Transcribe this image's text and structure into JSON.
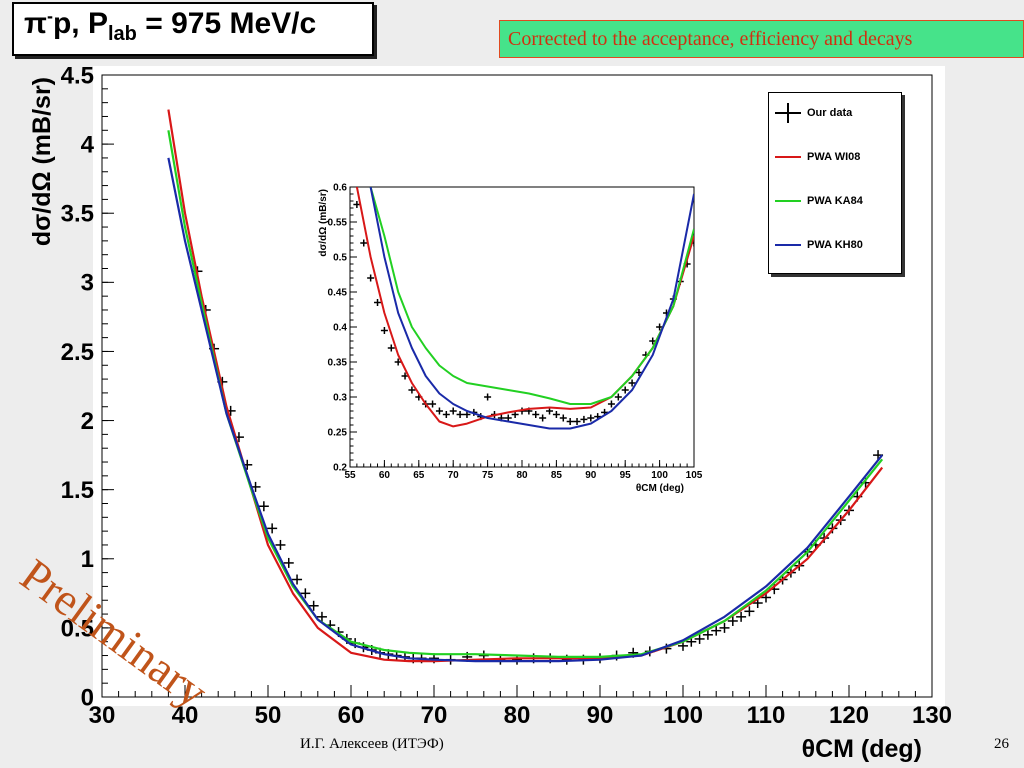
{
  "header": {
    "title_pre": "π",
    "title_sup": "-",
    "title_mid": "p, P",
    "title_sub": "lab",
    "title_post": " = 975 MeV/c",
    "note": "Corrected to the acceptance, efficiency and decays"
  },
  "footer": {
    "author": "И.Г. Алексеев (ИТЭФ)",
    "page": "26"
  },
  "watermark": "Preliminary",
  "colors": {
    "data": "#000000",
    "WI08": "#d81818",
    "KA84": "#22d022",
    "KH80": "#1a2aa8"
  },
  "legend": [
    {
      "label": "Our data",
      "key": "data"
    },
    {
      "label": "PWA WI08",
      "key": "WI08"
    },
    {
      "label": "PWA KA84",
      "key": "KA84"
    },
    {
      "label": "PWA KH80",
      "key": "KH80"
    }
  ],
  "chart_data": [
    {
      "type": "line",
      "xlabel": "θCM (deg)",
      "ylabel": "dσ/dΩ (mB/sr)",
      "xlim": [
        30,
        130
      ],
      "ylim": [
        0,
        4.5
      ],
      "xticks": [
        30,
        40,
        50,
        60,
        70,
        80,
        90,
        100,
        110,
        120,
        130
      ],
      "yticks": [
        0,
        0.5,
        1,
        1.5,
        2,
        2.5,
        3,
        3.5,
        4,
        4.5
      ],
      "ytick_labels": [
        "0",
        "0.5",
        "1",
        "1.5",
        "2",
        "2.5",
        "3",
        "3.5",
        "4",
        "4.5"
      ],
      "series": [
        {
          "name": "PWA WI08",
          "key": "WI08",
          "x": [
            38,
            40,
            42,
            45,
            48,
            50,
            53,
            56,
            60,
            64,
            67,
            70,
            75,
            80,
            85,
            90,
            95,
            100,
            105,
            110,
            115,
            120,
            124
          ],
          "y": [
            4.25,
            3.5,
            2.9,
            2.1,
            1.5,
            1.1,
            0.75,
            0.5,
            0.32,
            0.27,
            0.26,
            0.26,
            0.27,
            0.28,
            0.28,
            0.28,
            0.3,
            0.4,
            0.55,
            0.75,
            1.0,
            1.35,
            1.66
          ]
        },
        {
          "name": "PWA KA84",
          "key": "KA84",
          "x": [
            38,
            40,
            42,
            45,
            48,
            50,
            53,
            56,
            60,
            64,
            67,
            70,
            75,
            80,
            85,
            90,
            95,
            100,
            105,
            110,
            115,
            120,
            124
          ],
          "y": [
            4.1,
            3.4,
            2.85,
            2.05,
            1.5,
            1.15,
            0.8,
            0.56,
            0.4,
            0.34,
            0.32,
            0.31,
            0.31,
            0.3,
            0.29,
            0.29,
            0.31,
            0.4,
            0.55,
            0.77,
            1.05,
            1.42,
            1.72
          ]
        },
        {
          "name": "PWA KH80",
          "key": "KH80",
          "x": [
            38,
            40,
            42,
            45,
            48,
            50,
            53,
            56,
            60,
            64,
            67,
            70,
            75,
            80,
            85,
            90,
            95,
            100,
            105,
            110,
            115,
            120,
            124
          ],
          "y": [
            3.9,
            3.3,
            2.8,
            2.05,
            1.52,
            1.18,
            0.82,
            0.56,
            0.38,
            0.31,
            0.28,
            0.27,
            0.26,
            0.26,
            0.26,
            0.27,
            0.3,
            0.41,
            0.58,
            0.8,
            1.08,
            1.45,
            1.75
          ]
        }
      ],
      "points": {
        "x": [
          41.5,
          42.5,
          43.5,
          44.5,
          45.5,
          46.5,
          47.5,
          48.5,
          49.5,
          50.5,
          51.5,
          52.5,
          53.5,
          54.5,
          55.5,
          56.5,
          57.5,
          58.5,
          59.5,
          60.5,
          61.5,
          62.5,
          63.5,
          64.5,
          65.5,
          66.5,
          67.5,
          68.5,
          70,
          72,
          74,
          76,
          78,
          80,
          82,
          84,
          86,
          88,
          90,
          92,
          94,
          96,
          98,
          100,
          101,
          102,
          103,
          104,
          105,
          106,
          107,
          108,
          109,
          110,
          111,
          112,
          113,
          114,
          115,
          116,
          117,
          118,
          119,
          120,
          121,
          122,
          123.5
        ],
        "y": [
          3.08,
          2.8,
          2.52,
          2.28,
          2.07,
          1.88,
          1.68,
          1.52,
          1.38,
          1.22,
          1.1,
          0.97,
          0.85,
          0.75,
          0.66,
          0.58,
          0.52,
          0.47,
          0.42,
          0.39,
          0.36,
          0.34,
          0.32,
          0.31,
          0.3,
          0.29,
          0.28,
          0.28,
          0.28,
          0.27,
          0.29,
          0.3,
          0.27,
          0.27,
          0.28,
          0.28,
          0.27,
          0.27,
          0.28,
          0.3,
          0.32,
          0.33,
          0.35,
          0.37,
          0.4,
          0.42,
          0.45,
          0.48,
          0.5,
          0.55,
          0.58,
          0.62,
          0.68,
          0.72,
          0.78,
          0.85,
          0.9,
          0.95,
          1.05,
          1.1,
          1.15,
          1.22,
          1.28,
          1.35,
          1.45,
          1.55,
          1.75
        ]
      }
    },
    {
      "type": "line",
      "xlabel": "θCM (deg)",
      "ylabel": "dσ/dΩ (mB/sr)",
      "xlim": [
        55,
        105
      ],
      "ylim": [
        0.2,
        0.6
      ],
      "xticks": [
        55,
        60,
        65,
        70,
        75,
        80,
        85,
        90,
        95,
        100,
        105
      ],
      "yticks": [
        0.2,
        0.25,
        0.3,
        0.35,
        0.4,
        0.45,
        0.5,
        0.55,
        0.6
      ],
      "ytick_labels": [
        "0.2",
        "0.25",
        "0.3",
        "0.35",
        "0.4",
        "0.45",
        "0.5",
        "0.55",
        "0.6"
      ],
      "series": [
        {
          "name": "PWA WI08",
          "key": "WI08",
          "x": [
            56,
            58,
            60,
            62,
            64,
            66,
            68,
            70,
            72,
            75,
            78,
            81,
            84,
            87,
            90,
            93,
            96,
            99,
            102,
            105
          ],
          "y": [
            0.6,
            0.5,
            0.42,
            0.36,
            0.32,
            0.29,
            0.265,
            0.258,
            0.262,
            0.272,
            0.278,
            0.283,
            0.285,
            0.283,
            0.285,
            0.3,
            0.33,
            0.37,
            0.43,
            0.53
          ]
        },
        {
          "name": "PWA KA84",
          "key": "KA84",
          "x": [
            58,
            60,
            62,
            64,
            66,
            68,
            70,
            72,
            75,
            78,
            81,
            84,
            87,
            90,
            93,
            96,
            99,
            102,
            105
          ],
          "y": [
            0.6,
            0.53,
            0.45,
            0.4,
            0.37,
            0.345,
            0.33,
            0.32,
            0.315,
            0.31,
            0.305,
            0.298,
            0.29,
            0.29,
            0.3,
            0.33,
            0.37,
            0.43,
            0.54
          ]
        },
        {
          "name": "PWA KH80",
          "key": "KH80",
          "x": [
            58,
            60,
            62,
            64,
            66,
            68,
            70,
            72,
            75,
            78,
            81,
            84,
            87,
            90,
            93,
            96,
            99,
            102,
            105
          ],
          "y": [
            0.6,
            0.5,
            0.42,
            0.37,
            0.33,
            0.305,
            0.29,
            0.28,
            0.27,
            0.265,
            0.26,
            0.255,
            0.255,
            0.262,
            0.28,
            0.31,
            0.36,
            0.44,
            0.59
          ]
        }
      ],
      "points": {
        "x": [
          56,
          57,
          58,
          59,
          60,
          61,
          62,
          63,
          64,
          65,
          66,
          67,
          68,
          69,
          70,
          71,
          72,
          73,
          74,
          75,
          76,
          77,
          78,
          79,
          80,
          81,
          82,
          83,
          84,
          85,
          86,
          87,
          88,
          89,
          90,
          91,
          92,
          93,
          94,
          95,
          96,
          97,
          98,
          99,
          100,
          101,
          102,
          103,
          104,
          105
        ],
        "y": [
          0.575,
          0.52,
          0.47,
          0.435,
          0.395,
          0.37,
          0.35,
          0.33,
          0.31,
          0.3,
          0.29,
          0.29,
          0.28,
          0.275,
          0.28,
          0.275,
          0.275,
          0.278,
          0.272,
          0.3,
          0.275,
          0.27,
          0.27,
          0.275,
          0.28,
          0.28,
          0.275,
          0.27,
          0.28,
          0.275,
          0.27,
          0.265,
          0.265,
          0.268,
          0.27,
          0.272,
          0.278,
          0.29,
          0.3,
          0.31,
          0.32,
          0.335,
          0.36,
          0.38,
          0.4,
          0.42,
          0.44,
          0.465,
          0.49,
          0.52
        ]
      }
    }
  ]
}
